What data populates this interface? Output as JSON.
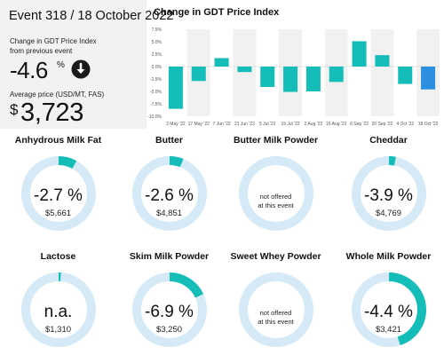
{
  "summary": {
    "event_title": "Event 318 / 18 October 2022",
    "change_label_line1": "Change in GDT Price Index",
    "change_label_line2": "from previous event",
    "change_value": "-4.6",
    "change_unit": "%",
    "change_direction_icon": "arrow-down-circle-icon",
    "price_label": "Average price (USD/MT, FAS)",
    "price_currency": "$",
    "price_value": "3,723"
  },
  "colors": {
    "teal": "#14bdb8",
    "blue": "#2d8fe0",
    "ring_track": "#d5e9f7",
    "panel_bg": "#f2f2f2"
  },
  "chart_data": {
    "type": "bar",
    "title": "Change in GDT Price Index",
    "categories": [
      "3 May '22",
      "17 May '22",
      "7 Jun '22",
      "21 Jun '22",
      "5 Jul '22",
      "19 Jul '22",
      "2 Aug '22",
      "16 Aug '22",
      "6 Sep '22",
      "20 Sep '22",
      "4 Oct '22",
      "18 Oct '22"
    ],
    "values": [
      -8.5,
      -2.9,
      1.7,
      -1.1,
      -4.1,
      -5.1,
      -5.0,
      -3.1,
      5.1,
      2.3,
      -3.5,
      -4.6
    ],
    "highlight_last": true,
    "ylim": [
      -10,
      7.5
    ],
    "yticks": [
      "7.5%",
      "5.0%",
      "2.5%",
      "0.0%",
      "-2.5%",
      "-5.0%",
      "-7.5%",
      "-10.0%"
    ],
    "ytick_values": [
      7.5,
      5.0,
      2.5,
      0.0,
      -2.5,
      -5.0,
      -7.5,
      -10.0
    ],
    "grid": "alternating vertical bands"
  },
  "products": [
    {
      "name": "Anhydrous Milk Fat",
      "change": "-2.7 %",
      "price": "$5,661",
      "offered": true,
      "fraction": 0.08
    },
    {
      "name": "Butter",
      "change": "-2.6 %",
      "price": "$4,851",
      "offered": true,
      "fraction": 0.06
    },
    {
      "name": "Butter Milk Powder",
      "offered": false,
      "na_line1": "not offered",
      "na_line2": "at this event",
      "fraction": 0
    },
    {
      "name": "Cheddar",
      "change": "-3.9 %",
      "price": "$4,769",
      "offered": true,
      "fraction": 0.03
    },
    {
      "name": "Lactose",
      "change": "n.a.",
      "price": "$1,310",
      "offered": true,
      "fraction": 0.01
    },
    {
      "name": "Skim Milk Powder",
      "change": "-6.9 %",
      "price": "$3,250",
      "offered": true,
      "fraction": 0.18
    },
    {
      "name": "Sweet Whey Powder",
      "offered": false,
      "na_line1": "not offered",
      "na_line2": "at this event",
      "fraction": 0
    },
    {
      "name": "Whole Milk Powder",
      "change": "-4.4 %",
      "price": "$3,421",
      "offered": true,
      "fraction": 0.45
    }
  ]
}
